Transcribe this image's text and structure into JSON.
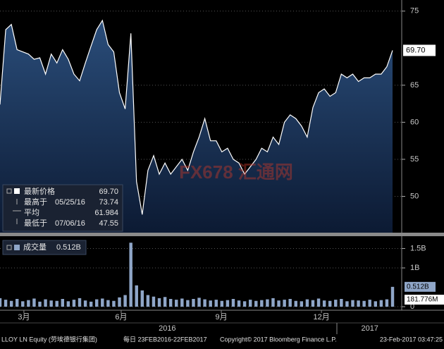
{
  "chart_data": {
    "type": "line",
    "watermark": "FX678 汇通网",
    "ylim": [
      45.1,
      76.5
    ],
    "yticks": [
      50,
      55,
      60,
      65,
      75
    ],
    "grid": true,
    "xlim": [
      0,
      69
    ],
    "xticks": [
      {
        "value": 4.2,
        "label": "3月"
      },
      {
        "value": 21.3,
        "label": "6月"
      },
      {
        "value": 38.9,
        "label": "9月"
      },
      {
        "value": 56.5,
        "label": "12月"
      }
    ],
    "year_ticks": [
      {
        "value": 29.4,
        "label": "2016"
      },
      {
        "value": 65,
        "label": "2017"
      }
    ],
    "last_price": {
      "value": 69.7,
      "label": "69.70"
    },
    "series": [
      {
        "color": "#ffffff",
        "values": [
          62.4,
          72.5,
          73.2,
          69.8,
          69.5,
          69.2,
          68.5,
          68.7,
          66.5,
          69.2,
          68.0,
          69.8,
          68.5,
          66.5,
          65.6,
          68.0,
          70.3,
          72.5,
          73.74,
          70.5,
          69.5,
          64.0,
          61.8,
          72.0,
          52.0,
          47.55,
          53.5,
          55.5,
          53.0,
          54.5,
          53.0,
          54.0,
          55.0,
          53.5,
          56.0,
          58.0,
          60.5,
          57.5,
          57.5,
          56.0,
          56.5,
          55.0,
          54.5,
          53.0,
          54.0,
          55.0,
          56.5,
          56.0,
          58.0,
          57.0,
          60.0,
          61.0,
          60.5,
          59.5,
          58.0,
          62.0,
          64.0,
          64.5,
          63.5,
          64.0,
          66.5,
          66.0,
          66.5,
          65.5,
          66.0,
          66.0,
          66.5,
          66.5,
          67.5,
          69.7
        ]
      }
    ],
    "legend": {
      "rows": [
        [
          "最新价格",
          "",
          "69.70"
        ],
        [
          "最高于",
          "05/25/16",
          "73.74"
        ],
        [
          "平均",
          "",
          "61.984"
        ],
        [
          "最低于",
          "07/06/16",
          "47.55"
        ]
      ]
    },
    "volume": {
      "type": "bar",
      "color": "#8fa6c8",
      "ylim": [
        0,
        1.8
      ],
      "yticks": [
        0,
        {
          "value": 1,
          "label": "1B"
        },
        {
          "value": 1.5,
          "label": "1.5B"
        }
      ],
      "legend": [
        "成交量",
        "0.512B"
      ],
      "last": {
        "value": 0.512,
        "label": "0.512B"
      },
      "average": {
        "value": 0.181776,
        "label": "181.776M"
      },
      "values": [
        0.22,
        0.18,
        0.15,
        0.2,
        0.14,
        0.17,
        0.21,
        0.13,
        0.19,
        0.16,
        0.15,
        0.2,
        0.14,
        0.18,
        0.22,
        0.16,
        0.13,
        0.19,
        0.21,
        0.17,
        0.15,
        0.24,
        0.3,
        1.65,
        0.55,
        0.42,
        0.3,
        0.26,
        0.22,
        0.25,
        0.2,
        0.18,
        0.21,
        0.17,
        0.2,
        0.23,
        0.19,
        0.16,
        0.18,
        0.15,
        0.17,
        0.2,
        0.16,
        0.14,
        0.18,
        0.15,
        0.17,
        0.19,
        0.22,
        0.16,
        0.18,
        0.2,
        0.15,
        0.14,
        0.19,
        0.17,
        0.21,
        0.16,
        0.15,
        0.18,
        0.2,
        0.14,
        0.17,
        0.16,
        0.15,
        0.18,
        0.14,
        0.17,
        0.19,
        0.512
      ]
    },
    "footer": [
      "LLOY LN Equity (劳埃德银行集团)",
      "每日 23FEB2016-22FEB2017",
      "Copyright© 2017 Bloomberg Finance L.P.",
      "23-Feb-2017 03:47:25"
    ]
  }
}
